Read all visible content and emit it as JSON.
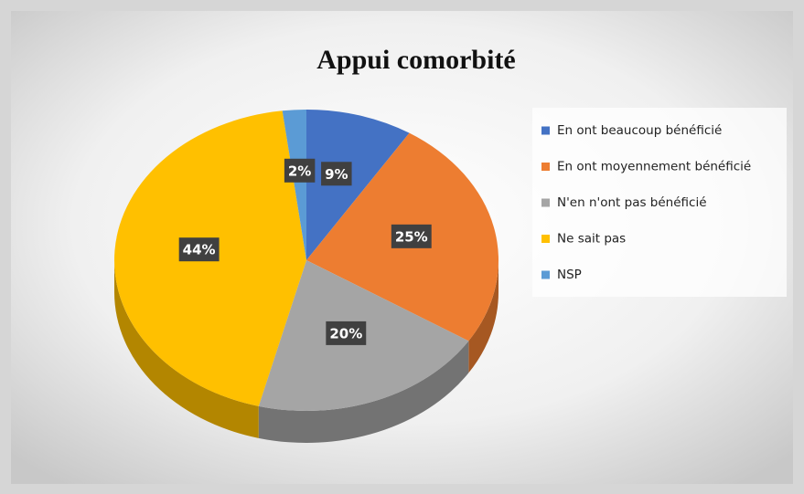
{
  "chart_data": {
    "type": "pie",
    "title": "Appui comorbité",
    "categories": [
      "En ont beaucoup bénéficié",
      "En ont moyennement bénéficié",
      "N'en n'ont pas bénéficié",
      "Ne sait pas",
      "NSP"
    ],
    "values": [
      9,
      25,
      20,
      44,
      2
    ],
    "value_labels": [
      "9%",
      "25%",
      "20%",
      "44%",
      "2%"
    ],
    "colors": [
      "#4472c4",
      "#ed7d31",
      "#a5a5a5",
      "#ffc000",
      "#5b9bd5"
    ],
    "legend": "right"
  }
}
